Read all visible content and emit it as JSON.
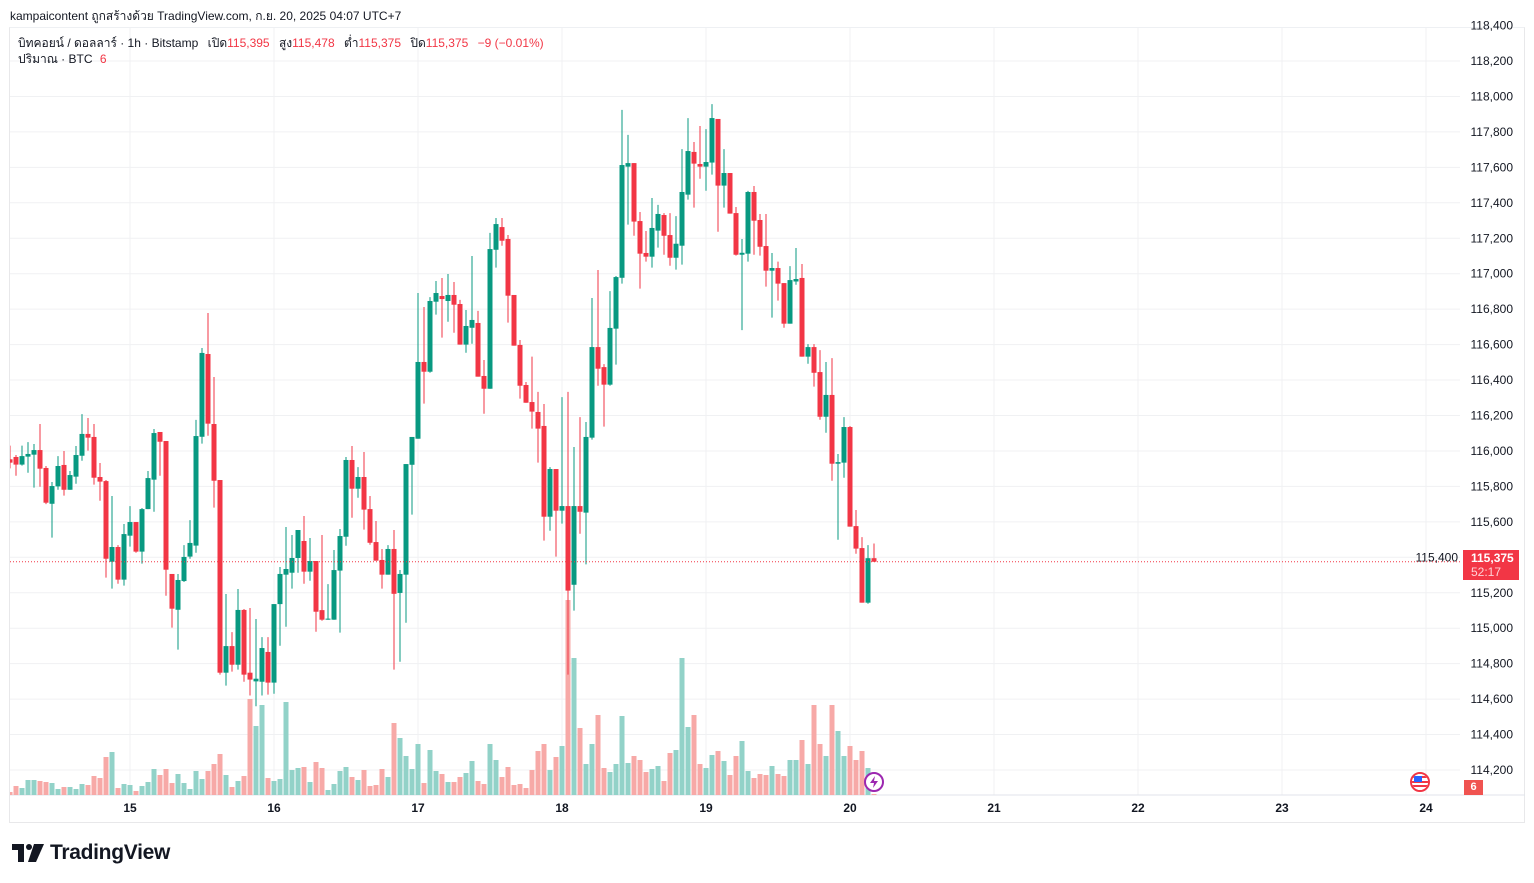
{
  "header": {
    "caption": "kampaicontent ถูกสร้างด้วย TradingView.com, ก.ย. 20, 2025 04:07 UTC+7"
  },
  "legend": {
    "symbol": "บิทคอยน์ / ดอลลาร์ · 1h · Bitstamp",
    "open_label": "เปิด",
    "open": "115,395",
    "high_label": "สูง",
    "high": "115,478",
    "low_label": "ต่ำ",
    "low": "115,375",
    "close_label": "ปิด",
    "close": "115,375",
    "change": "−9 (−0.01%)",
    "volume_label": "ปริมาณ · BTC",
    "volume": "6"
  },
  "price_box": {
    "price": "115,375",
    "countdown": "52:17"
  },
  "events_badge": "6",
  "logo": {
    "text": "TradingView"
  },
  "colors": {
    "up": "#089981",
    "down": "#f23645",
    "up_volume": "#92d2c8",
    "down_volume": "#f7a9a7",
    "grid": "#f0f1f3",
    "price_line": "#f23645"
  },
  "chart_data": {
    "type": "candlestick",
    "title": "บิทคอยน์ / ดอลลาร์ · 1h · Bitstamp",
    "interval": "1h",
    "first_bar": "14 04:00",
    "x_ticks": [
      "15",
      "16",
      "17",
      "18",
      "19",
      "20",
      "21",
      "22",
      "23",
      "24"
    ],
    "y_ticks": [
      "114,200",
      "114,400",
      "114,600",
      "114,800",
      "115,000",
      "115,200",
      "115,400",
      "115,600",
      "115,800",
      "116,000",
      "116,200",
      "116,400",
      "116,600",
      "116,800",
      "117,000",
      "117,200",
      "117,400",
      "117,600",
      "117,800",
      "118,000",
      "118,200",
      "118,400"
    ],
    "ylim": [
      114060,
      118580
    ],
    "last_price": 115375,
    "ohlc": [
      [
        115953,
        116030,
        115902,
        115934
      ],
      [
        115966,
        115977,
        115860,
        115923
      ],
      [
        115923,
        116030,
        115917,
        115971
      ],
      [
        115968,
        116050,
        115877,
        115983
      ],
      [
        115979,
        116039,
        115793,
        116005
      ],
      [
        116005,
        116152,
        115798,
        115900
      ],
      [
        115904,
        115915,
        115700,
        115708
      ],
      [
        115702,
        115825,
        115511,
        115802
      ],
      [
        115800,
        115971,
        115781,
        115915
      ],
      [
        115921,
        116000,
        115748,
        115781
      ],
      [
        115781,
        115887,
        115781,
        115864
      ],
      [
        115855,
        116028,
        115815,
        115977
      ],
      [
        115973,
        116208,
        115945,
        116096
      ],
      [
        116096,
        116186,
        116002,
        116075
      ],
      [
        116079,
        116152,
        115810,
        115849
      ],
      [
        115853,
        115932,
        115719,
        115827
      ],
      [
        115830,
        115836,
        115285,
        115392
      ],
      [
        115375,
        115746,
        115223,
        115458
      ],
      [
        115458,
        115469,
        115251,
        115274
      ],
      [
        115274,
        115588,
        115240,
        115531
      ],
      [
        115522,
        115689,
        115460,
        115599
      ],
      [
        115599,
        115599,
        115426,
        115432
      ],
      [
        115432,
        115678,
        115364,
        115672
      ],
      [
        115672,
        115887,
        115672,
        115847
      ],
      [
        115838,
        116124,
        115657,
        116101
      ],
      [
        116107,
        116107,
        115860,
        116052
      ],
      [
        116056,
        116056,
        115183,
        115330
      ],
      [
        115306,
        115306,
        115003,
        115110
      ],
      [
        115104,
        115306,
        114879,
        115272
      ],
      [
        115266,
        115469,
        115261,
        115402
      ],
      [
        115404,
        115610,
        115392,
        115481
      ],
      [
        115466,
        116175,
        115426,
        116084
      ],
      [
        116080,
        116581,
        116041,
        116553
      ],
      [
        116547,
        116778,
        116086,
        116154
      ],
      [
        116152,
        116417,
        115680,
        115832
      ],
      [
        115836,
        115836,
        114738,
        114749
      ],
      [
        114749,
        115193,
        114676,
        114899
      ],
      [
        114899,
        114978,
        114755,
        114794
      ],
      [
        114794,
        115221,
        114766,
        115103
      ],
      [
        115103,
        115108,
        114698,
        114738
      ],
      [
        114749,
        115114,
        114620,
        114710
      ],
      [
        114700,
        115052,
        114560,
        114715
      ],
      [
        114698,
        114950,
        114620,
        114888
      ],
      [
        114866,
        114950,
        114625,
        114693
      ],
      [
        114693,
        115136,
        114630,
        115136
      ],
      [
        115136,
        115345,
        114901,
        115306
      ],
      [
        115302,
        115571,
        115008,
        115334
      ],
      [
        115313,
        115526,
        115223,
        115396
      ],
      [
        115396,
        115554,
        115313,
        115554
      ],
      [
        115492,
        115633,
        115251,
        115319
      ],
      [
        115319,
        115509,
        115268,
        115379
      ],
      [
        115379,
        115379,
        114980,
        115093
      ],
      [
        115102,
        115526,
        115042,
        115048
      ],
      [
        115048,
        115249,
        115048,
        115054
      ],
      [
        115048,
        115441,
        115048,
        115328
      ],
      [
        115325,
        115560,
        114975,
        115520
      ],
      [
        115516,
        115966,
        115465,
        115949
      ],
      [
        115949,
        116028,
        115623,
        115787
      ],
      [
        115787,
        115909,
        115736,
        115853
      ],
      [
        115853,
        115994,
        115556,
        115669
      ],
      [
        115672,
        115746,
        115471,
        115482
      ],
      [
        115486,
        115605,
        115381,
        115381
      ],
      [
        115385,
        115447,
        115223,
        115302
      ],
      [
        115302,
        115469,
        115302,
        115447
      ],
      [
        115447,
        115554,
        114766,
        115194
      ],
      [
        115199,
        115328,
        114811,
        115306
      ],
      [
        115302,
        115926,
        115031,
        115926
      ],
      [
        115922,
        116079,
        115641,
        116079
      ],
      [
        116069,
        116891,
        116069,
        116502
      ],
      [
        116502,
        116812,
        116267,
        116447
      ],
      [
        116447,
        116868,
        116441,
        116846
      ],
      [
        116842,
        116959,
        116769,
        116891
      ],
      [
        116874,
        116976,
        116639,
        116857
      ],
      [
        116846,
        116998,
        116729,
        116880
      ],
      [
        116880,
        116953,
        116667,
        116825
      ],
      [
        116829,
        116852,
        116600,
        116600
      ],
      [
        116600,
        116795,
        116554,
        116705
      ],
      [
        116695,
        117100,
        116605,
        116739
      ],
      [
        116722,
        116790,
        116419,
        116419
      ],
      [
        116423,
        116513,
        116210,
        116351
      ],
      [
        116351,
        117230,
        116351,
        117139
      ],
      [
        117135,
        117314,
        117034,
        117280
      ],
      [
        117263,
        117314,
        117158,
        117186
      ],
      [
        117196,
        117218,
        116724,
        116876
      ],
      [
        116880,
        116880,
        116594,
        116594
      ],
      [
        116598,
        116626,
        116295,
        116368
      ],
      [
        116372,
        116389,
        116272,
        116272
      ],
      [
        116276,
        116532,
        116126,
        116222
      ],
      [
        116220,
        116333,
        115934,
        116126
      ],
      [
        116141,
        116265,
        115494,
        115629
      ],
      [
        115629,
        115909,
        115550,
        115898
      ],
      [
        115898,
        115898,
        115404,
        115663
      ],
      [
        115663,
        116304,
        115590,
        115689
      ],
      [
        115689,
        116333,
        114738,
        115212
      ],
      [
        115245,
        116022,
        115099,
        115689
      ],
      [
        115689,
        116191,
        115533,
        115657
      ],
      [
        115652,
        116163,
        115360,
        116079
      ],
      [
        116075,
        116863,
        116064,
        116586
      ],
      [
        116586,
        117021,
        116368,
        116464
      ],
      [
        116473,
        116490,
        116137,
        116374
      ],
      [
        116374,
        116902,
        116368,
        116694
      ],
      [
        116690,
        116987,
        116487,
        116981
      ],
      [
        116977,
        117924,
        116944,
        117613
      ],
      [
        117604,
        117783,
        117277,
        117624
      ],
      [
        117624,
        117624,
        117214,
        117294
      ],
      [
        117297,
        117348,
        116916,
        117113
      ],
      [
        117117,
        117241,
        117068,
        117096
      ],
      [
        117096,
        117427,
        117034,
        117258
      ],
      [
        117243,
        117388,
        117147,
        117337
      ],
      [
        117331,
        117342,
        117107,
        117214
      ],
      [
        117218,
        117342,
        117045,
        117090
      ],
      [
        117090,
        117325,
        117023,
        117169
      ],
      [
        117158,
        117703,
        117051,
        117461
      ],
      [
        117446,
        117878,
        117418,
        117692
      ],
      [
        117687,
        117743,
        117373,
        117621
      ],
      [
        117619,
        117833,
        117536,
        117604
      ],
      [
        117604,
        117816,
        117468,
        117630
      ],
      [
        117627,
        117957,
        117559,
        117878
      ],
      [
        117873,
        117873,
        117237,
        117497
      ],
      [
        117497,
        117703,
        117373,
        117568
      ],
      [
        117568,
        117568,
        117339,
        117339
      ],
      [
        117342,
        117376,
        117102,
        117107
      ],
      [
        117107,
        117196,
        116682,
        117118
      ],
      [
        117113,
        117467,
        117068,
        117461
      ],
      [
        117461,
        117495,
        117107,
        117299
      ],
      [
        117303,
        117337,
        117102,
        117152
      ],
      [
        117156,
        117337,
        116927,
        117017
      ],
      [
        117017,
        117117,
        116752,
        117032
      ],
      [
        117032,
        117068,
        116848,
        116944
      ],
      [
        116947,
        116947,
        116695,
        116718
      ],
      [
        116718,
        117043,
        116718,
        116964
      ],
      [
        116956,
        117145,
        116938,
        116970
      ],
      [
        116976,
        117055,
        116532,
        116532
      ],
      [
        116532,
        116603,
        116492,
        116586
      ],
      [
        116586,
        116603,
        116363,
        116441
      ],
      [
        116445,
        116569,
        116176,
        116193
      ],
      [
        116193,
        116502,
        116103,
        116316
      ],
      [
        116316,
        116524,
        115832,
        115928
      ],
      [
        115928,
        115983,
        115499,
        115937
      ],
      [
        115934,
        116191,
        115849,
        116135
      ],
      [
        116135,
        116141,
        115573,
        115573
      ],
      [
        115576,
        115667,
        115420,
        115449
      ],
      [
        115452,
        115514,
        115144,
        115144
      ],
      [
        115144,
        115469,
        115138,
        115395
      ],
      [
        115395,
        115478,
        115375,
        115375
      ]
    ],
    "volume": [
      18,
      54,
      42,
      90,
      90,
      84,
      78,
      72,
      36,
      48,
      48,
      36,
      66,
      60,
      114,
      102,
      228,
      258,
      42,
      66,
      60,
      24,
      54,
      78,
      156,
      120,
      156,
      72,
      126,
      72,
      36,
      144,
      96,
      144,
      186,
      246,
      120,
      48,
      84,
      114,
      576,
      414,
      540,
      102,
      84,
      96,
      558,
      150,
      162,
      168,
      78,
      198,
      162,
      30,
      66,
      144,
      168,
      108,
      90,
      150,
      54,
      60,
      156,
      108,
      432,
      342,
      234,
      156,
      306,
      72,
      270,
      144,
      126,
      78,
      78,
      108,
      132,
      204,
      84,
      66,
      306,
      210,
      108,
      168,
      60,
      66,
      42,
      150,
      264,
      306,
      150,
      228,
      294,
      1170,
      822,
      402,
      186,
      306,
      480,
      162,
      138,
      186,
      474,
      192,
      234,
      210,
      138,
      156,
      174,
      84,
      252,
      270,
      822,
      408,
      480,
      186,
      162,
      240,
      264,
      204,
      120,
      234,
      324,
      144,
      102,
      126,
      120,
      174,
      126,
      114,
      210,
      210,
      330,
      186,
      540,
      306,
      234,
      540,
      384,
      234,
      294,
      210,
      264,
      162,
      6
    ]
  }
}
